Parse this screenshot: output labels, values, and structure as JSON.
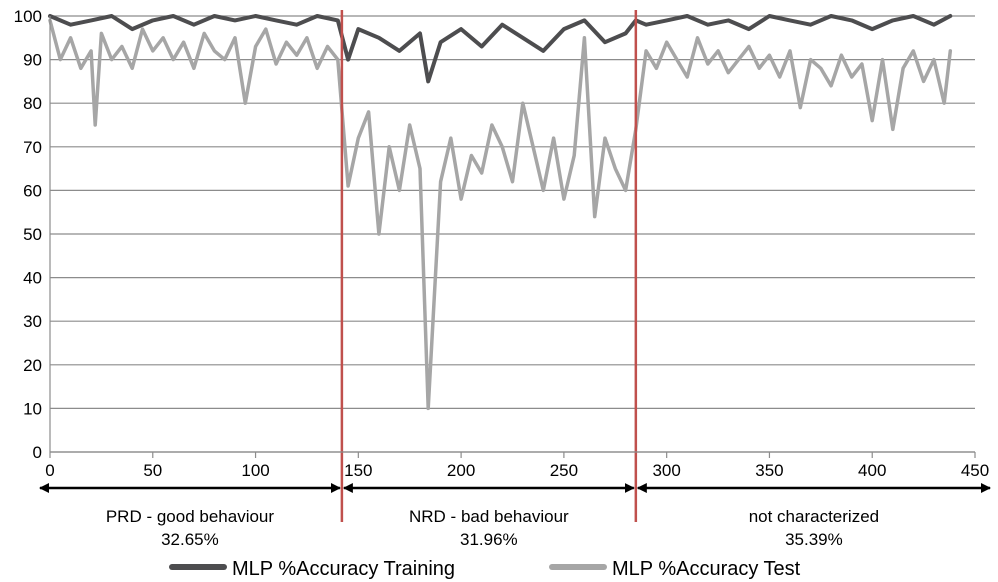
{
  "chart_data": {
    "type": "line",
    "xlim": [
      0,
      450
    ],
    "ylim": [
      0,
      100
    ],
    "x_ticks": [
      0,
      50,
      100,
      150,
      200,
      250,
      300,
      350,
      400,
      450
    ],
    "y_ticks": [
      0,
      10,
      20,
      30,
      40,
      50,
      60,
      70,
      80,
      90,
      100
    ],
    "grid": true,
    "legend_position": "bottom",
    "series": [
      {
        "name": "MLP %Accuracy Training",
        "color": "#4d4d4f",
        "x": [
          0,
          10,
          20,
          30,
          40,
          50,
          60,
          70,
          80,
          90,
          100,
          110,
          120,
          130,
          140,
          145,
          150,
          160,
          170,
          180,
          184,
          190,
          200,
          210,
          220,
          230,
          240,
          250,
          260,
          270,
          280,
          285,
          290,
          300,
          310,
          320,
          330,
          340,
          350,
          360,
          370,
          380,
          390,
          400,
          410,
          420,
          430,
          438
        ],
        "y": [
          100,
          98,
          99,
          100,
          97,
          99,
          100,
          98,
          100,
          99,
          100,
          99,
          98,
          100,
          99,
          90,
          97,
          95,
          92,
          96,
          85,
          94,
          97,
          93,
          98,
          95,
          92,
          97,
          99,
          94,
          96,
          99,
          98,
          99,
          100,
          98,
          99,
          97,
          100,
          99,
          98,
          100,
          99,
          97,
          99,
          100,
          98,
          100
        ]
      },
      {
        "name": "MLP %Accuracy Test",
        "color": "#a6a6a6",
        "x": [
          0,
          5,
          10,
          15,
          20,
          22,
          25,
          30,
          35,
          40,
          45,
          50,
          55,
          60,
          65,
          70,
          75,
          80,
          85,
          90,
          95,
          100,
          105,
          110,
          115,
          120,
          125,
          130,
          135,
          140,
          145,
          150,
          155,
          160,
          165,
          170,
          175,
          180,
          184,
          190,
          195,
          200,
          205,
          210,
          215,
          220,
          225,
          230,
          235,
          240,
          245,
          250,
          255,
          260,
          265,
          270,
          275,
          280,
          285,
          290,
          295,
          300,
          305,
          310,
          315,
          320,
          325,
          330,
          335,
          340,
          345,
          350,
          355,
          360,
          365,
          370,
          375,
          380,
          385,
          390,
          395,
          400,
          405,
          410,
          415,
          420,
          425,
          430,
          435,
          438
        ],
        "y": [
          99,
          90,
          95,
          88,
          92,
          75,
          96,
          90,
          93,
          88,
          97,
          92,
          95,
          90,
          94,
          88,
          96,
          92,
          90,
          95,
          80,
          93,
          97,
          89,
          94,
          91,
          95,
          88,
          93,
          90,
          61,
          72,
          78,
          50,
          70,
          60,
          75,
          65,
          10,
          62,
          72,
          58,
          68,
          64,
          75,
          70,
          62,
          80,
          70,
          60,
          72,
          58,
          68,
          95,
          54,
          72,
          65,
          60,
          74,
          92,
          88,
          94,
          90,
          86,
          95,
          89,
          92,
          87,
          90,
          93,
          88,
          91,
          86,
          92,
          79,
          90,
          88,
          84,
          91,
          86,
          89,
          76,
          90,
          74,
          88,
          92,
          85,
          90,
          80,
          92
        ]
      }
    ],
    "dividers": [
      {
        "x": 142,
        "color": "#c0504d"
      },
      {
        "x": 285,
        "color": "#c0504d"
      }
    ],
    "regions": [
      {
        "from": 0,
        "to": 142,
        "label": "PRD - good behaviour",
        "percent": "32.65%"
      },
      {
        "from": 142,
        "to": 285,
        "label": "NRD - bad behaviour",
        "percent": "31.96%"
      },
      {
        "from": 285,
        "to": 450,
        "label": "not characterized",
        "percent": "35.39%"
      }
    ]
  }
}
